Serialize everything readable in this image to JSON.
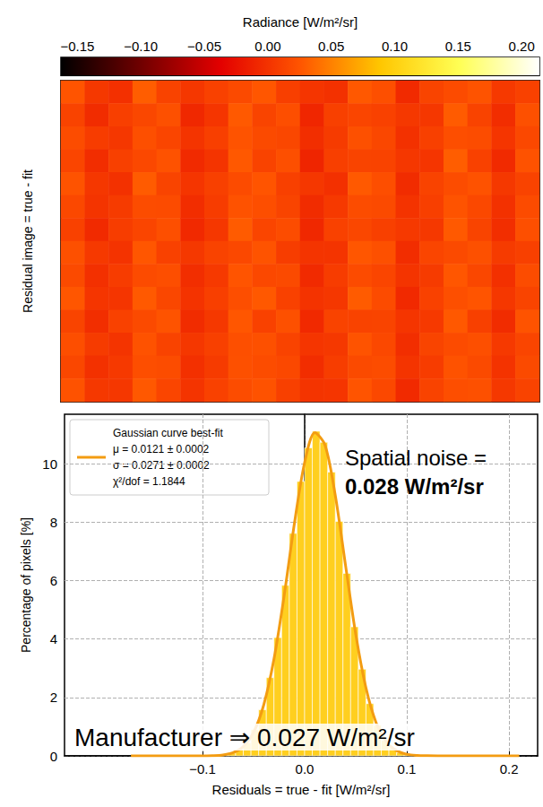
{
  "chart_data": [
    {
      "type": "heatmap",
      "ylabel": "Residual image = true - fit",
      "colorbar": {
        "label": "Radiance [W/m²/sr]",
        "lim": [
          -0.163,
          0.214
        ],
        "ticks": [
          {
            "value": -0.15,
            "label": "−0.15"
          },
          {
            "value": -0.1,
            "label": "−0.10"
          },
          {
            "value": -0.05,
            "label": "−0.05"
          },
          {
            "value": 0,
            "label": "0.00"
          },
          {
            "value": 0.05,
            "label": "0.05"
          },
          {
            "value": 0.1,
            "label": "0.10"
          },
          {
            "value": 0.15,
            "label": "0.15"
          },
          {
            "value": 0.2,
            "label": "0.20"
          }
        ]
      },
      "cells": [
        [
          0.025,
          0.004,
          -0.002,
          0.03,
          0.012,
          0.003,
          0.011,
          0.017,
          0.026,
          0.009,
          0.002,
          -0.001,
          0.027,
          0.021,
          -0.006,
          0.013,
          0.018,
          0.024,
          0.005,
          0.011
        ],
        [
          0.012,
          -0.005,
          0.009,
          0.015,
          0.022,
          -0.008,
          0.002,
          0.028,
          0.013,
          0.02,
          -0.009,
          0.01,
          0.014,
          0.011,
          0.004,
          0.003,
          0.029,
          0.012,
          -0.004,
          0.022
        ],
        [
          0.019,
          0.007,
          0.003,
          0.021,
          0.014,
          0.001,
          0.009,
          0.024,
          0.017,
          0.015,
          -0.003,
          0.006,
          0.022,
          0.015,
          -0.001,
          0.01,
          0.02,
          0.019,
          0.002,
          0.016
        ],
        [
          0.014,
          -0.004,
          0.01,
          0.016,
          0.023,
          -0.006,
          0.001,
          0.027,
          0.012,
          0.021,
          -0.01,
          0.009,
          0.013,
          0.012,
          0.003,
          0.002,
          0.03,
          0.011,
          -0.006,
          0.023
        ],
        [
          0.024,
          0.003,
          -0.001,
          0.029,
          0.013,
          0.002,
          0.01,
          0.018,
          0.025,
          0.01,
          0.003,
          -0.002,
          0.028,
          0.02,
          -0.005,
          0.012,
          0.019,
          0.023,
          0.004,
          0.012
        ],
        [
          0.016,
          0.001,
          0.006,
          0.019,
          0.018,
          -0.004,
          0.007,
          0.023,
          0.02,
          0.013,
          -0.005,
          0.005,
          0.019,
          0.017,
          0.0,
          0.009,
          0.024,
          0.016,
          -0.001,
          0.018
        ],
        [
          0.011,
          -0.006,
          0.008,
          0.014,
          0.021,
          -0.007,
          0.003,
          0.029,
          0.014,
          0.019,
          -0.008,
          0.011,
          0.015,
          0.01,
          0.005,
          0.004,
          0.028,
          0.013,
          -0.003,
          0.021
        ],
        [
          0.022,
          0.005,
          0.0,
          0.026,
          0.011,
          0.004,
          0.012,
          0.016,
          0.024,
          0.008,
          0.001,
          0.001,
          0.026,
          0.022,
          -0.004,
          0.014,
          0.017,
          0.022,
          0.006,
          0.01
        ],
        [
          0.017,
          -0.002,
          0.007,
          0.018,
          0.02,
          -0.003,
          0.005,
          0.025,
          0.016,
          0.017,
          -0.006,
          0.007,
          0.018,
          0.014,
          0.001,
          0.006,
          0.026,
          0.015,
          -0.002,
          0.019
        ],
        [
          0.026,
          0.002,
          0.002,
          0.028,
          0.015,
          0.0,
          0.009,
          0.02,
          0.027,
          0.011,
          0.0,
          0.003,
          0.029,
          0.018,
          -0.007,
          0.011,
          0.021,
          0.025,
          0.003,
          0.013
        ],
        [
          0.013,
          -0.003,
          0.011,
          0.017,
          0.024,
          -0.005,
          0.004,
          0.026,
          0.011,
          0.022,
          -0.007,
          0.012,
          0.012,
          0.013,
          0.002,
          0.005,
          0.027,
          0.01,
          -0.005,
          0.024
        ],
        [
          0.02,
          0.006,
          0.001,
          0.023,
          0.012,
          0.003,
          0.01,
          0.021,
          0.022,
          0.012,
          0.002,
          0.004,
          0.024,
          0.016,
          -0.003,
          0.013,
          0.018,
          0.021,
          0.005,
          0.014
        ],
        [
          0.015,
          -0.001,
          0.005,
          0.02,
          0.019,
          -0.002,
          0.006,
          0.022,
          0.019,
          0.016,
          -0.004,
          0.008,
          0.017,
          0.019,
          0.001,
          0.007,
          0.023,
          0.017,
          0.0,
          0.017
        ],
        [
          0.023,
          0.004,
          0.003,
          0.027,
          0.014,
          0.001,
          0.011,
          0.019,
          0.023,
          0.01,
          0.001,
          0.002,
          0.025,
          0.016,
          -0.006,
          0.012,
          0.02,
          0.022,
          0.004,
          0.012
        ]
      ]
    },
    {
      "type": "histogram",
      "xlabel": "Residuals = true - fit [W/m²/sr]",
      "ylabel": "Percentage of pixels [%]",
      "bins": [
        -0.105,
        -0.0975,
        -0.09,
        -0.0825,
        -0.075,
        -0.0675,
        -0.06,
        -0.0525,
        -0.045,
        -0.0375,
        -0.03,
        -0.0225,
        -0.015,
        -0.0075,
        0,
        0.0075,
        0.015,
        0.0225,
        0.03,
        0.0375,
        0.045,
        0.0525,
        0.06,
        0.0675,
        0.075,
        0.0825,
        0.09,
        0.0975,
        0.105,
        0.1125,
        0.12,
        0.1275
      ],
      "counts": [
        0.0,
        0.01,
        0.02,
        0.04,
        0.1,
        0.23,
        0.45,
        0.9,
        1.58,
        2.68,
        4.05,
        5.84,
        7.62,
        9.4,
        10.55,
        11.12,
        10.74,
        9.72,
        8.03,
        6.25,
        4.42,
        2.97,
        1.79,
        1.05,
        0.53,
        0.27,
        0.11,
        0.05,
        0.02,
        0.01,
        0.0
      ],
      "color": "#ffcf1f",
      "fit": {
        "name": "Gaussian curve best-fit",
        "color": "#f39c12",
        "x": [
          -0.17,
          -0.16,
          -0.15,
          -0.14,
          -0.13,
          -0.12,
          -0.11,
          -0.1,
          -0.09,
          -0.08,
          -0.07,
          -0.06,
          -0.05,
          -0.04,
          -0.03,
          -0.02,
          -0.01,
          0,
          0.01,
          0.02,
          0.03,
          0.04,
          0.05,
          0.06,
          0.07,
          0.08,
          0.09,
          0.1,
          0.11,
          0.12,
          0.13,
          0.14,
          0.15,
          0.16,
          0.17,
          0.18,
          0.19,
          0.2,
          0.21
        ],
        "values": [
          0,
          0,
          0,
          0,
          0,
          0,
          0,
          0.002,
          0.009,
          0.034,
          0.113,
          0.32,
          0.8,
          1.75,
          3.32,
          5.5,
          7.96,
          10.05,
          11.07,
          10.64,
          8.92,
          6.53,
          4.17,
          2.33,
          1.13,
          0.48,
          0.18,
          0.058,
          0.016,
          0.004,
          0,
          0,
          0,
          0,
          0,
          0,
          0,
          0,
          0
        ],
        "legend_lines": [
          "μ = 0.0121 ± 0.0002",
          "σ = 0.0271 ± 0.0002",
          "χ²/dof = 1.1844"
        ]
      },
      "xlim": [
        -0.235,
        0.228
      ],
      "xticks": [
        {
          "value": -0.1,
          "label": "−0.1"
        },
        {
          "value": 0,
          "label": "0.0"
        },
        {
          "value": 0.1,
          "label": "0.1"
        },
        {
          "value": 0.2,
          "label": "0.2"
        }
      ],
      "ylim": [
        0,
        11.7
      ],
      "yticks": [
        0,
        2,
        4,
        6,
        8,
        10
      ],
      "grid": true,
      "legend": "upper left",
      "annotations": [
        "Spatial noise =",
        "0.028 W/m²/sr",
        "Manufacturer ⇒ 0.027 W/m²/sr"
      ]
    }
  ]
}
